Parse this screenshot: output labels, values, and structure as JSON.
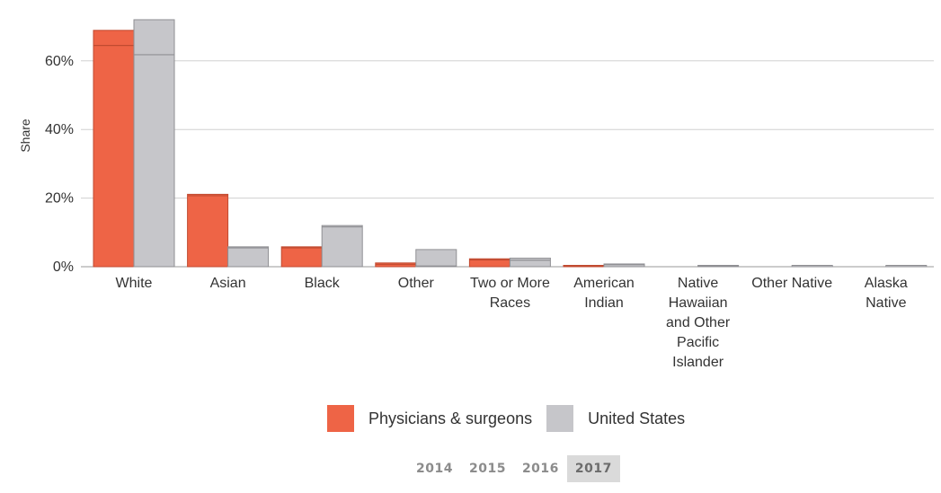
{
  "chart_data": {
    "type": "bar",
    "ylabel": "Share",
    "yticks": [
      "0%",
      "20%",
      "40%",
      "60%"
    ],
    "ylim": [
      0,
      0.72
    ],
    "categories": [
      [
        "White"
      ],
      [
        "Asian"
      ],
      [
        "Black"
      ],
      [
        "Other"
      ],
      [
        "Two or More",
        "Races"
      ],
      [
        "American",
        "Indian"
      ],
      [
        "Native",
        "Hawaiian",
        "and Other",
        "Pacific",
        "Islander"
      ],
      [
        "Other Native"
      ],
      [
        "Alaska",
        "Native"
      ]
    ],
    "series": [
      {
        "name": "Physicians & surgeons",
        "color": "#ee6446",
        "values": [
          0.689,
          0.211,
          0.058,
          0.011,
          0.023,
          0.002,
          0.0,
          0.0,
          0.0
        ],
        "inner_values": [
          0.645,
          0.207,
          0.055,
          0.007,
          0.02,
          0.001,
          0.0,
          0.0,
          0.0
        ]
      },
      {
        "name": "United States",
        "color": "#c6c6ca",
        "values": [
          0.72,
          0.058,
          0.12,
          0.05,
          0.025,
          0.008,
          0.003,
          0.001,
          0.001
        ],
        "inner_values": [
          0.618,
          0.055,
          0.116,
          0.002,
          0.019,
          0.006,
          0.002,
          0.001,
          0.001
        ]
      }
    ],
    "grid": true,
    "legend": "bottom"
  },
  "years": [
    "2014",
    "2015",
    "2016",
    "2017"
  ],
  "active_year": "2017"
}
